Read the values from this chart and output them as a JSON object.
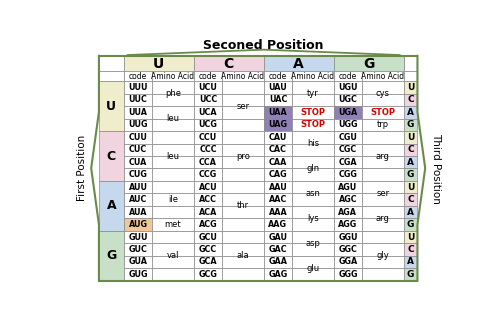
{
  "title": "Seconed Position",
  "first_position_label": "First Position",
  "third_position_label": "Third Position",
  "header_colors": {
    "U": "#f0edcc",
    "C": "#f0d5e0",
    "A": "#c5d8ed",
    "G": "#c8dfc8"
  },
  "first_pos_colors": {
    "U": "#f0edcc",
    "C": "#f0d5e0",
    "A": "#c5d8ed",
    "G": "#c8dfc8"
  },
  "third_pos_colors": {
    "U": "#f0edcc",
    "C": "#f0d5e0",
    "A": "#c5d8ed",
    "G": "#c8dfc8"
  },
  "codons": {
    "UUU": "phe",
    "UUC": "phe",
    "UUA": "leu",
    "UUG": "leu",
    "UCU": "ser",
    "UCC": "ser",
    "UCA": "ser",
    "UCG": "ser",
    "UAU": "tyr",
    "UAC": "tyr",
    "UAA": "STOP",
    "UAG": "STOP",
    "UGU": "cys",
    "UGC": "cys",
    "UGA": "STOP",
    "UGG": "trp",
    "CUU": "leu",
    "CUC": "leu",
    "CUA": "leu",
    "CUG": "leu",
    "CCU": "pro",
    "CCC": "pro",
    "CCA": "pro",
    "CCG": "pro",
    "CAU": "his",
    "CAC": "his",
    "CAA": "gln",
    "CAG": "gln",
    "CGU": "arg",
    "CGC": "arg",
    "CGA": "arg",
    "CGG": "arg",
    "AUU": "ile",
    "AUC": "ile",
    "AUA": "ile",
    "AUG": "met",
    "ACU": "thr",
    "ACC": "thr",
    "ACA": "thr",
    "ACG": "thr",
    "AAU": "asn",
    "AAC": "asn",
    "AAA": "lys",
    "AAG": "lys",
    "AGU": "ser",
    "AGC": "ser",
    "AGA": "arg",
    "AGG": "arg",
    "GUU": "val",
    "GUC": "val",
    "GUA": "val",
    "GUG": "val",
    "GCU": "ala",
    "GCC": "ala",
    "GCA": "ala",
    "GCG": "ala",
    "GAU": "asp",
    "GAC": "asp",
    "GAA": "glu",
    "GAG": "glu",
    "GGU": "gly",
    "GGC": "gly",
    "GGA": "gly",
    "GGG": "gly"
  },
  "special_bg": {
    "UAA": "#9080b8",
    "UAG": "#9080b8",
    "UGA": "#9080b8",
    "AUG": "#f0c898"
  },
  "stop_color": "#dd0000",
  "border_color": "#6a8a4a",
  "sections": [
    "U",
    "C",
    "A",
    "G"
  ],
  "first_positions": [
    "U",
    "C",
    "A",
    "G"
  ],
  "third_positions": [
    "U",
    "C",
    "A",
    "G"
  ]
}
